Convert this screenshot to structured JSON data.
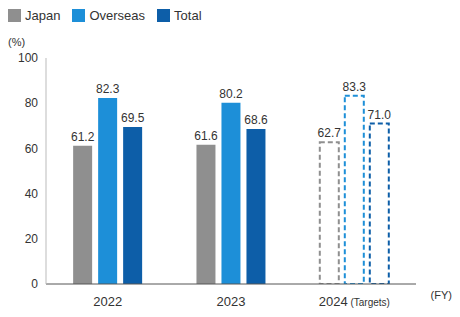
{
  "chart_data": {
    "type": "bar",
    "categories": [
      "2022",
      "2023",
      "2024 (Targets)"
    ],
    "series": [
      {
        "name": "Japan",
        "color": "#8f8f8f",
        "values": [
          61.2,
          61.6,
          62.7
        ]
      },
      {
        "name": "Overseas",
        "color": "#1d8fd8",
        "values": [
          82.3,
          80.2,
          83.3
        ]
      },
      {
        "name": "Total",
        "color": "#0d5ea8",
        "values": [
          69.5,
          68.6,
          71.0
        ],
        "value_labels": [
          "69.5",
          "68.6",
          "71.0"
        ]
      }
    ],
    "y_label": "(%)",
    "x_label": "(FY)",
    "ylim": [
      0,
      100
    ],
    "yticks": [
      0,
      20,
      40,
      60,
      80,
      100
    ],
    "grid": false,
    "legend": "top-left",
    "data_labels": true
  }
}
